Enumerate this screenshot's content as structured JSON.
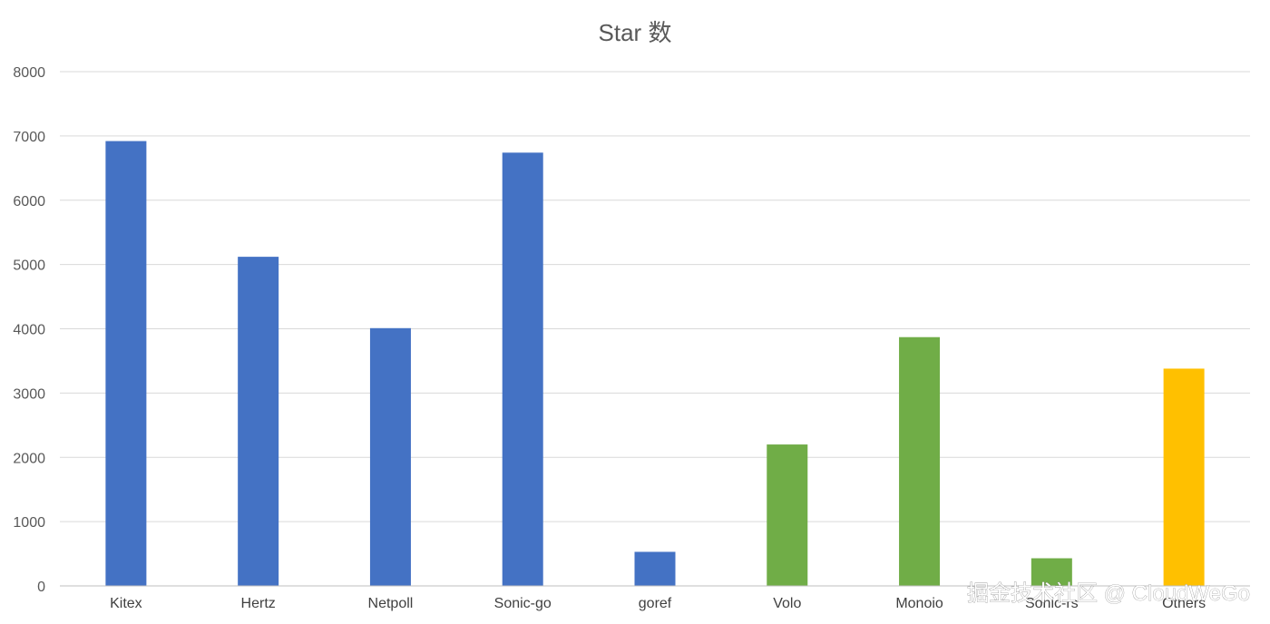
{
  "chart_data": {
    "type": "bar",
    "title": "Star 数",
    "xlabel": "",
    "ylabel": "",
    "ylim": [
      0,
      8000
    ],
    "yticks": [
      0,
      1000,
      2000,
      3000,
      4000,
      5000,
      6000,
      7000,
      8000
    ],
    "grid": true,
    "legend": "none",
    "categories": [
      "Kitex",
      "Hertz",
      "Netpoll",
      "Sonic-go",
      "goref",
      "Volo",
      "Monoio",
      "Sonic-rs",
      "Others"
    ],
    "values": [
      6920,
      5120,
      4010,
      6740,
      530,
      2200,
      3870,
      430,
      3380
    ],
    "colors": [
      "#4472c4",
      "#4472c4",
      "#4472c4",
      "#4472c4",
      "#4472c4",
      "#70ad47",
      "#70ad47",
      "#70ad47",
      "#ffc000"
    ]
  },
  "watermark": "掘金技术社区 @ CloudWeGo"
}
